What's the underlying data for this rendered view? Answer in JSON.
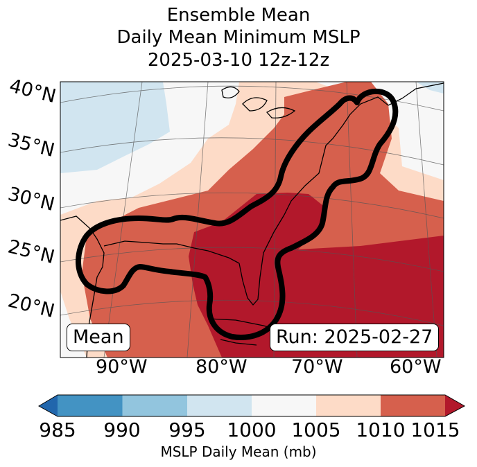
{
  "title": {
    "line1": "Ensemble Mean",
    "line2": "Daily Mean Minimum MSLP",
    "line3": "2025-03-10 12z-12z"
  },
  "map": {
    "latitude_labels": [
      "40°N",
      "35°N",
      "30°N",
      "25°N",
      "20°N"
    ],
    "longitude_labels": [
      "90°W",
      "80°W",
      "70°W",
      "60°W"
    ],
    "left_badge": "Mean",
    "right_badge": "Run: 2025-02-27",
    "contour_color": "#000000",
    "land_line_color": "#000000"
  },
  "colorbar": {
    "label": "MSLP Daily Mean (mb)",
    "ticks": [
      "985",
      "990",
      "995",
      "1000",
      "1005",
      "1010",
      "1015"
    ],
    "under_color": "#2166ac",
    "over_color": "#b2182b",
    "bins": [
      {
        "range": "985-990",
        "color": "#4393c3"
      },
      {
        "range": "990-995",
        "color": "#92c5de"
      },
      {
        "range": "995-1000",
        "color": "#d1e5f0"
      },
      {
        "range": "1000-1005",
        "color": "#f7f7f7"
      },
      {
        "range": "1005-1010",
        "color": "#fddbc7"
      },
      {
        "range": "1010-1015",
        "color": "#d6604d"
      }
    ]
  }
}
